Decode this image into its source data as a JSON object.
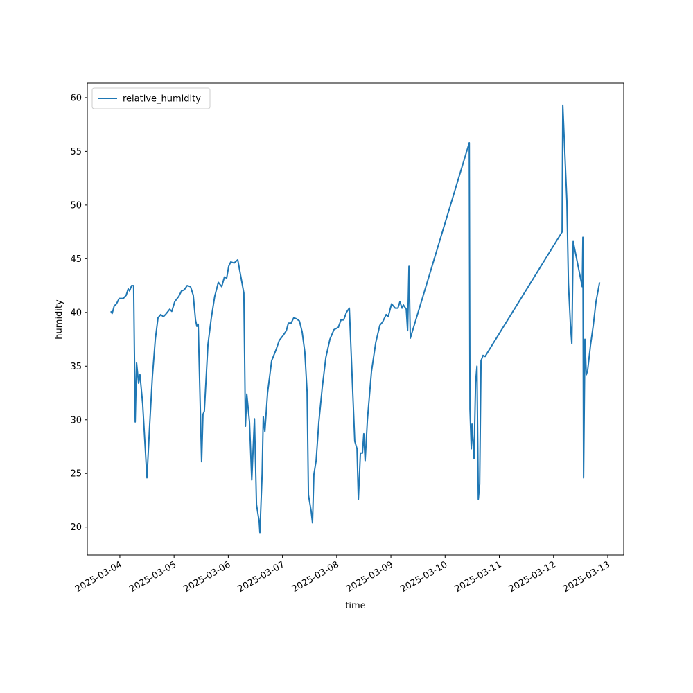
{
  "chart_data": {
    "type": "line",
    "xlabel": "time",
    "ylabel": "humidity",
    "legend": "upper left",
    "xlim": [
      "2025-03-03 09:36",
      "2025-03-13 07:04"
    ],
    "xticks": [
      "2025-03-04",
      "2025-03-05",
      "2025-03-06",
      "2025-03-07",
      "2025-03-08",
      "2025-03-09",
      "2025-03-10",
      "2025-03-11",
      "2025-03-12",
      "2025-03-13"
    ],
    "ylim": [
      17.4,
      61.35
    ],
    "yticks": [
      20,
      25,
      30,
      35,
      40,
      45,
      50,
      55,
      60
    ],
    "x": [
      "2025-03-03 20:00",
      "2025-03-03 20:36",
      "2025-03-03 21:30",
      "2025-03-03 22:30",
      "2025-03-03 23:42",
      "2025-03-04 01:30",
      "2025-03-04 02:48",
      "2025-03-04 03:42",
      "2025-03-04 04:18",
      "2025-03-04 05:12",
      "2025-03-04 06:06",
      "2025-03-04 06:48",
      "2025-03-04 07:24",
      "2025-03-04 08:18",
      "2025-03-04 08:54",
      "2025-03-04 10:06",
      "2025-03-04 12:00",
      "2025-03-04 13:12",
      "2025-03-04 14:24",
      "2025-03-04 15:42",
      "2025-03-04 16:54",
      "2025-03-04 18:06",
      "2025-03-04 19:18",
      "2025-03-04 20:36",
      "2025-03-04 22:06",
      "2025-03-04 23:00",
      "2025-03-05 00:18",
      "2025-03-05 02:06",
      "2025-03-05 03:18",
      "2025-03-05 04:30",
      "2025-03-05 05:48",
      "2025-03-05 07:18",
      "2025-03-05 08:30",
      "2025-03-05 09:30",
      "2025-03-05 10:06",
      "2025-03-05 10:42",
      "2025-03-05 12:12",
      "2025-03-05 12:48",
      "2025-03-05 13:24",
      "2025-03-05 15:00",
      "2025-03-05 16:30",
      "2025-03-05 18:00",
      "2025-03-05 19:36",
      "2025-03-05 21:06",
      "2025-03-05 22:18",
      "2025-03-05 23:18",
      "2025-03-06 00:12",
      "2025-03-06 01:06",
      "2025-03-06 02:36",
      "2025-03-06 04:12",
      "2025-03-06 06:54",
      "2025-03-06 07:36",
      "2025-03-06 08:12",
      "2025-03-06 09:24",
      "2025-03-06 10:24",
      "2025-03-06 11:36",
      "2025-03-06 12:30",
      "2025-03-06 13:42",
      "2025-03-06 14:00",
      "2025-03-06 15:00",
      "2025-03-06 15:30",
      "2025-03-06 16:12",
      "2025-03-06 17:24",
      "2025-03-06 19:12",
      "2025-03-06 21:06",
      "2025-03-06 22:36",
      "2025-03-07 00:06",
      "2025-03-07 01:42",
      "2025-03-07 02:36",
      "2025-03-07 03:48",
      "2025-03-07 05:00",
      "2025-03-07 06:12",
      "2025-03-07 07:30",
      "2025-03-07 08:42",
      "2025-03-07 09:54",
      "2025-03-07 10:54",
      "2025-03-07 11:30",
      "2025-03-07 12:42",
      "2025-03-07 13:18",
      "2025-03-07 13:54",
      "2025-03-07 14:54",
      "2025-03-07 16:06",
      "2025-03-07 17:36",
      "2025-03-07 19:12",
      "2025-03-07 21:00",
      "2025-03-07 22:48",
      "2025-03-08 00:42",
      "2025-03-08 01:54",
      "2025-03-08 03:06",
      "2025-03-08 04:18",
      "2025-03-08 05:36",
      "2025-03-08 08:00",
      "2025-03-08 09:00",
      "2025-03-08 09:36",
      "2025-03-08 10:30",
      "2025-03-08 11:24",
      "2025-03-08 12:00",
      "2025-03-08 12:36",
      "2025-03-08 13:36",
      "2025-03-08 15:24",
      "2025-03-08 17:18",
      "2025-03-08 19:06",
      "2025-03-08 20:18",
      "2025-03-08 21:54",
      "2025-03-08 22:48",
      "2025-03-09 00:18",
      "2025-03-09 01:54",
      "2025-03-09 03:06",
      "2025-03-09 04:00",
      "2025-03-09 04:54",
      "2025-03-09 05:30",
      "2025-03-09 06:48",
      "2025-03-09 07:24",
      "2025-03-09 08:00",
      "2025-03-09 08:36",
      "2025-03-10 10:42",
      "2025-03-10 11:00",
      "2025-03-10 11:36",
      "2025-03-10 11:54",
      "2025-03-10 12:48",
      "2025-03-10 13:30",
      "2025-03-10 14:06",
      "2025-03-10 14:42",
      "2025-03-10 15:18",
      "2025-03-10 15:54",
      "2025-03-10 16:48",
      "2025-03-10 17:42",
      "2025-03-12 03:48",
      "2025-03-12 04:06",
      "2025-03-12 05:54",
      "2025-03-12 06:36",
      "2025-03-12 07:30",
      "2025-03-12 08:06",
      "2025-03-12 08:42",
      "2025-03-12 12:42",
      "2025-03-12 13:00",
      "2025-03-12 13:18",
      "2025-03-12 13:54",
      "2025-03-12 14:30",
      "2025-03-12 15:06",
      "2025-03-12 16:24",
      "2025-03-12 17:36",
      "2025-03-12 18:48",
      "2025-03-12 20:24"
    ],
    "series": [
      {
        "name": "relative_humidity",
        "color": "#1f77b4",
        "values": [
          40.1,
          39.9,
          40.6,
          40.8,
          41.3,
          41.3,
          41.6,
          42.2,
          42.0,
          42.5,
          42.5,
          29.8,
          35.3,
          33.4,
          34.2,
          31.5,
          24.6,
          29.5,
          34.0,
          37.5,
          39.5,
          39.8,
          39.6,
          39.9,
          40.3,
          40.1,
          41.0,
          41.5,
          42.0,
          42.1,
          42.5,
          42.4,
          41.6,
          39.3,
          38.7,
          38.9,
          26.1,
          30.5,
          30.8,
          37.0,
          39.5,
          41.5,
          42.8,
          42.4,
          43.3,
          43.2,
          44.3,
          44.7,
          44.6,
          44.9,
          41.8,
          29.4,
          32.4,
          29.8,
          24.4,
          30.1,
          22.1,
          20.5,
          19.5,
          25.0,
          30.3,
          28.9,
          32.5,
          35.5,
          36.5,
          37.4,
          37.8,
          38.3,
          39.0,
          39.0,
          39.5,
          39.4,
          39.2,
          38.2,
          36.3,
          32.6,
          23.0,
          21.5,
          20.4,
          24.9,
          26.2,
          29.8,
          33.0,
          35.8,
          37.5,
          38.4,
          38.6,
          39.3,
          39.3,
          40.0,
          40.4,
          28.0,
          27.3,
          22.6,
          26.9,
          26.9,
          28.7,
          26.2,
          30.0,
          34.5,
          37.2,
          38.8,
          39.1,
          39.8,
          39.6,
          40.8,
          40.4,
          40.4,
          41.0,
          40.4,
          40.7,
          40.3,
          38.3,
          44.3,
          37.6,
          55.8,
          31.0,
          27.3,
          29.6,
          26.4,
          33.5,
          35.0,
          22.6,
          24.0,
          35.5,
          36.0,
          35.9,
          47.5,
          59.3,
          50.4,
          42.7,
          38.8,
          37.1,
          46.6,
          42.4,
          47.0,
          24.6,
          37.5,
          34.2,
          34.6,
          37.0,
          38.8,
          41.0,
          42.8
        ]
      }
    ]
  }
}
